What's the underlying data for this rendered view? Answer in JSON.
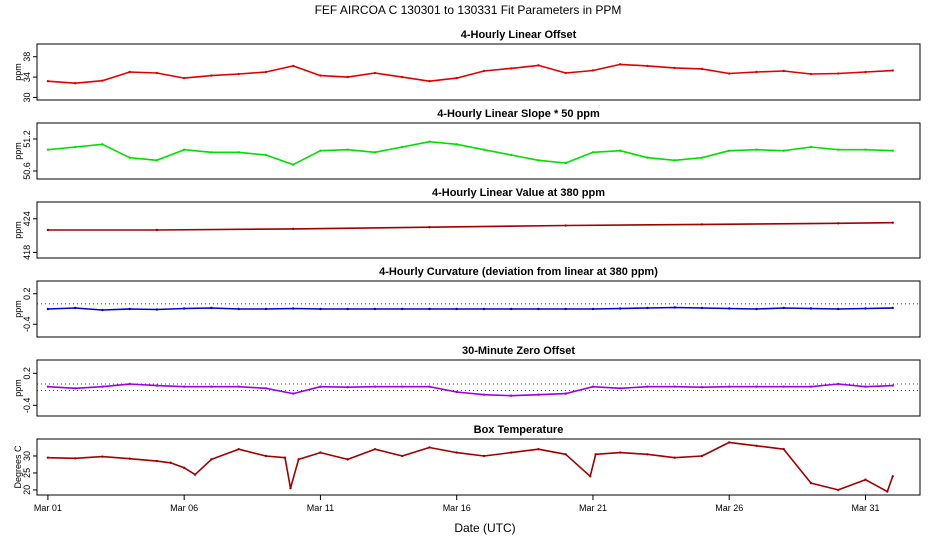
{
  "title": "FEF   AIRCOA C   130301 to 130331   Fit Parameters in PPM",
  "xlabel": "Date (UTC)",
  "x_ticks": [
    {
      "day": 1,
      "label": "Mar 01"
    },
    {
      "day": 6,
      "label": "Mar 06"
    },
    {
      "day": 11,
      "label": "Mar 11"
    },
    {
      "day": 16,
      "label": "Mar 16"
    },
    {
      "day": 21,
      "label": "Mar 21"
    },
    {
      "day": 26,
      "label": "Mar 26"
    },
    {
      "day": 31,
      "label": "Mar 31"
    }
  ],
  "chart_data": [
    {
      "type": "line",
      "title": "4-Hourly Linear Offset",
      "ylabel": "ppm",
      "color": "#e00000",
      "yticks": [
        30,
        34,
        38
      ],
      "ylim": [
        29.5,
        40.5
      ],
      "xlim": [
        0.6,
        33.0
      ],
      "x": [
        1,
        2,
        3,
        4,
        5,
        6,
        7,
        8,
        9,
        10,
        11,
        12,
        13,
        14,
        15,
        16,
        17,
        18,
        19,
        20,
        21,
        22,
        23,
        24,
        25,
        26,
        27,
        28,
        29,
        30,
        31,
        32
      ],
      "values": [
        33.2,
        32.8,
        33.3,
        35.0,
        34.8,
        33.8,
        34.3,
        34.6,
        35.0,
        36.2,
        34.3,
        34.0,
        34.8,
        34.0,
        33.2,
        33.8,
        35.2,
        35.7,
        36.3,
        34.8,
        35.3,
        36.5,
        36.2,
        35.8,
        35.6,
        34.7,
        35.0,
        35.2,
        34.6,
        34.7,
        35.0,
        35.3
      ],
      "hlines": []
    },
    {
      "type": "line",
      "title": "4-Hourly Linear Slope * 50 ppm",
      "ylabel": "ppm",
      "color": "#00e000",
      "yticks": [
        50.6,
        51.2
      ],
      "ylim": [
        50.45,
        51.5
      ],
      "xlim": [
        0.6,
        33.0
      ],
      "x": [
        1,
        2,
        3,
        4,
        5,
        6,
        7,
        8,
        9,
        10,
        11,
        12,
        13,
        14,
        15,
        16,
        17,
        18,
        19,
        20,
        21,
        22,
        23,
        24,
        25,
        26,
        27,
        28,
        29,
        30,
        31,
        32
      ],
      "values": [
        51.0,
        51.05,
        51.1,
        50.85,
        50.8,
        51.0,
        50.95,
        50.95,
        50.9,
        50.72,
        50.98,
        51.0,
        50.95,
        51.05,
        51.15,
        51.1,
        51.0,
        50.9,
        50.8,
        50.75,
        50.95,
        50.98,
        50.85,
        50.8,
        50.85,
        50.98,
        51.0,
        50.98,
        51.05,
        51.0,
        51.0,
        50.98
      ],
      "hlines": []
    },
    {
      "type": "line",
      "title": "4-Hourly Linear Value at 380 ppm",
      "ylabel": "ppm",
      "color": "#a00000",
      "yticks": [
        418,
        424
      ],
      "ylim": [
        417,
        427
      ],
      "xlim": [
        0.6,
        33.0
      ],
      "x": [
        1,
        5,
        10,
        15,
        20,
        25,
        30,
        32
      ],
      "values": [
        422.0,
        422.0,
        422.2,
        422.5,
        422.8,
        423.0,
        423.2,
        423.3
      ],
      "hlines": []
    },
    {
      "type": "line",
      "title": "4-Hourly Curvature (deviation from linear at 380 ppm)",
      "ylabel": "ppm",
      "color": "#0000d0",
      "yticks": [
        -0.4,
        0.2
      ],
      "ylim": [
        -0.65,
        0.45
      ],
      "xlim": [
        0.6,
        33.0
      ],
      "x": [
        1,
        2,
        3,
        4,
        5,
        6,
        7,
        8,
        9,
        10,
        11,
        12,
        13,
        14,
        15,
        16,
        17,
        18,
        19,
        20,
        21,
        22,
        23,
        24,
        25,
        26,
        27,
        28,
        29,
        30,
        31,
        32
      ],
      "values": [
        -0.1,
        -0.08,
        -0.12,
        -0.1,
        -0.11,
        -0.09,
        -0.08,
        -0.1,
        -0.1,
        -0.09,
        -0.1,
        -0.1,
        -0.1,
        -0.1,
        -0.1,
        -0.1,
        -0.1,
        -0.1,
        -0.1,
        -0.1,
        -0.1,
        -0.09,
        -0.08,
        -0.07,
        -0.08,
        -0.09,
        -0.1,
        -0.08,
        -0.09,
        -0.1,
        -0.09,
        -0.08
      ],
      "hlines": [
        0.0
      ]
    },
    {
      "type": "line",
      "title": "30-Minute Zero Offset",
      "ylabel": "ppm",
      "color": "#a000e0",
      "yticks": [
        -0.4,
        0.2
      ],
      "ylim": [
        -0.6,
        0.45
      ],
      "xlim": [
        0.6,
        33.0
      ],
      "x": [
        1,
        2,
        3,
        4,
        5,
        6,
        7,
        8,
        9,
        10,
        11,
        12,
        13,
        14,
        15,
        16,
        17,
        18,
        19,
        20,
        21,
        22,
        23,
        24,
        25,
        26,
        27,
        28,
        29,
        30,
        31,
        32
      ],
      "values": [
        -0.05,
        -0.08,
        -0.05,
        0.0,
        -0.03,
        -0.05,
        -0.05,
        -0.05,
        -0.08,
        -0.18,
        -0.05,
        -0.06,
        -0.05,
        -0.05,
        -0.05,
        -0.15,
        -0.2,
        -0.22,
        -0.2,
        -0.18,
        -0.05,
        -0.08,
        -0.05,
        -0.05,
        -0.06,
        -0.05,
        -0.05,
        -0.05,
        -0.05,
        0.0,
        -0.05,
        -0.03
      ],
      "hlines": [
        0.0,
        -0.12
      ]
    },
    {
      "type": "line",
      "title": "Box Temperature",
      "ylabel": "Degrees C",
      "color": "#a00000",
      "yticks": [
        20,
        25,
        30
      ],
      "ylim": [
        18.5,
        35
      ],
      "xlim": [
        0.6,
        33.0
      ],
      "x": [
        1,
        2,
        3,
        4,
        5,
        5.5,
        6,
        6.4,
        7,
        8,
        9,
        9.7,
        9.9,
        10.2,
        11,
        12,
        13,
        14,
        15,
        16,
        17,
        18,
        19,
        20,
        20.9,
        21.1,
        22,
        23,
        24,
        25,
        26,
        27,
        28,
        29,
        30,
        31,
        31.8,
        32
      ],
      "values": [
        29.5,
        29.3,
        29.8,
        29.2,
        28.5,
        28.0,
        26.5,
        24.5,
        29.0,
        32.0,
        30.0,
        29.5,
        20.5,
        29.0,
        31.0,
        29.0,
        32.0,
        30.0,
        32.5,
        31.0,
        30.0,
        31.0,
        32.0,
        30.5,
        24.0,
        30.5,
        31.0,
        30.5,
        29.5,
        30.0,
        34.0,
        33.0,
        32.0,
        22.0,
        20.0,
        23.0,
        19.5,
        24.0
      ],
      "hlines": []
    }
  ]
}
